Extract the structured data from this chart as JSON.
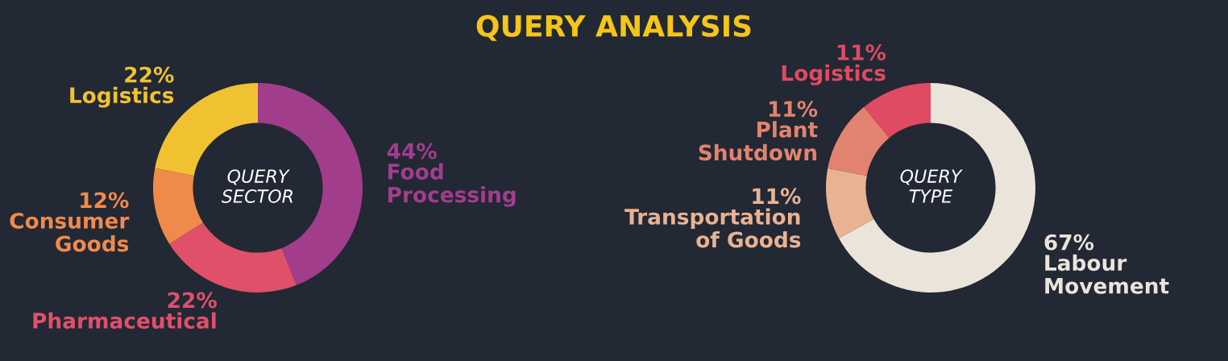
{
  "chart_data": [
    {
      "type": "donut",
      "title": "QUERY SECTOR",
      "annotations": [
        "QUERY ANALYSIS"
      ],
      "categories": [
        "Food Processing",
        "Pharmaceutical",
        "Consumer Goods",
        "Logistics"
      ],
      "values": [
        44,
        22,
        12,
        22
      ],
      "colors": [
        "#a23d8c",
        "#e0506a",
        "#f08a4b",
        "#f0c232"
      ],
      "value_labels": [
        "44%",
        "22%",
        "12%",
        "22%"
      ]
    },
    {
      "type": "donut",
      "title": "QUERY TYPE",
      "categories": [
        "Labour Movement",
        "Transportation of Goods",
        "Plant Shutdown",
        "Logistics"
      ],
      "values": [
        67,
        11,
        11,
        11
      ],
      "colors": [
        "#ebe4da",
        "#e8b393",
        "#e2836f",
        "#e04a62"
      ],
      "value_labels": [
        "67%",
        "11%",
        "11%",
        "11%"
      ]
    }
  ]
}
